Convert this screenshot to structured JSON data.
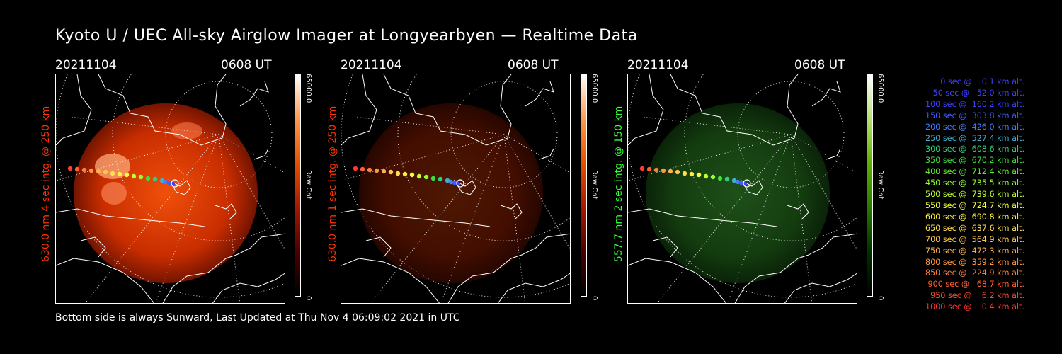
{
  "title": "Kyoto U / UEC All-sky Airglow Imager at Longyearbyen — Realtime Data",
  "footer": "Bottom side is always Sunward, Last Updated at Thu Nov  4 06:09:02 2021 in UTC",
  "panels": [
    {
      "date": "20211104",
      "time": "0608 UT",
      "side_label": "630.0 nm 4 sec intg. @ 250 km",
      "side_color": "#ff3300",
      "colorbar_max": "65000.0",
      "colorbar_min": "0",
      "colorbar_label": "Raw Cnt",
      "palette": "red",
      "brightness": 1.0
    },
    {
      "date": "20211104",
      "time": "0608 UT",
      "side_label": "630.0 nm 1 sec intg. @ 250 km",
      "side_color": "#ff3300",
      "colorbar_max": "65000.0",
      "colorbar_min": "0",
      "colorbar_label": "Raw Cnt",
      "palette": "red",
      "brightness": 0.3
    },
    {
      "date": "20211104",
      "time": "0608 UT",
      "side_label": "557.7 nm 2 sec intg. @ 150 km",
      "side_color": "#33ff33",
      "colorbar_max": "65000.0",
      "colorbar_min": "0",
      "colorbar_label": "Raw Cnt",
      "palette": "green",
      "brightness": 0.35
    }
  ],
  "legend": [
    {
      "text": "   0 sec @    0.1 km alt.",
      "color": "#4040ff"
    },
    {
      "text": "  50 sec @   52.0 km alt.",
      "color": "#4040ff"
    },
    {
      "text": " 100 sec @  160.2 km alt.",
      "color": "#4040ff"
    },
    {
      "text": " 150 sec @  303.8 km alt.",
      "color": "#3f5fff"
    },
    {
      "text": " 200 sec @  426.0 km alt.",
      "color": "#3f7fff"
    },
    {
      "text": " 250 sec @  527.4 km alt.",
      "color": "#3fafcf"
    },
    {
      "text": " 300 sec @  608.6 km alt.",
      "color": "#2fcf7f"
    },
    {
      "text": " 350 sec @  670.2 km alt.",
      "color": "#3fdf3f"
    },
    {
      "text": " 400 sec @  712.4 km alt.",
      "color": "#5fef2f"
    },
    {
      "text": " 450 sec @  735.5 km alt.",
      "color": "#8fff2f"
    },
    {
      "text": " 500 sec @  739.6 km alt.",
      "color": "#bfff2f"
    },
    {
      "text": " 550 sec @  724.7 km alt.",
      "color": "#efff3f"
    },
    {
      "text": " 600 sec @  690.8 km alt.",
      "color": "#ffef3f"
    },
    {
      "text": " 650 sec @  637.6 km alt.",
      "color": "#ffdf4f"
    },
    {
      "text": " 700 sec @  564.9 km alt.",
      "color": "#ffc84f"
    },
    {
      "text": " 750 sec @  472.3 km alt.",
      "color": "#ffb04f"
    },
    {
      "text": " 800 sec @  359.2 km alt.",
      "color": "#ff983f"
    },
    {
      "text": " 850 sec @  224.9 km alt.",
      "color": "#ff803f"
    },
    {
      "text": " 900 sec @   68.7 km alt.",
      "color": "#ff6030"
    },
    {
      "text": " 950 sec @    6.2 km alt.",
      "color": "#ff4a30"
    },
    {
      "text": "1000 sec @    0.4 km alt.",
      "color": "#ff3a30"
    }
  ]
}
